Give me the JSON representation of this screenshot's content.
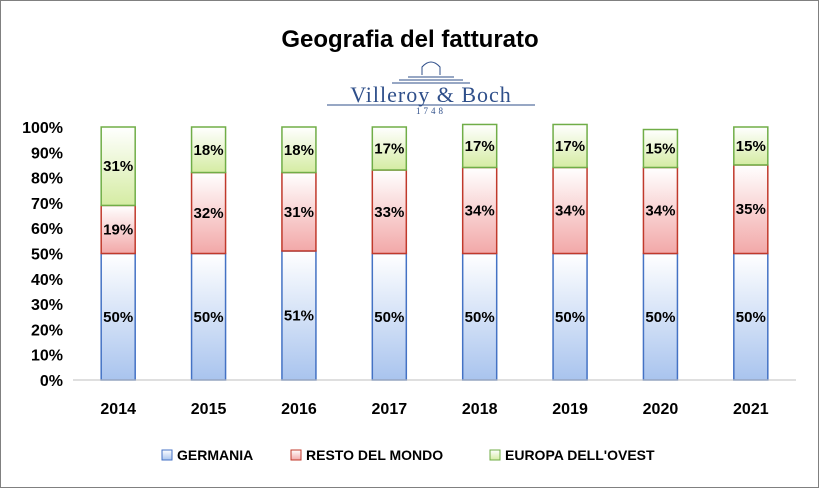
{
  "chart_data": {
    "type": "bar",
    "stacked": "percent",
    "title": "Geografia  del fatturato",
    "logo": {
      "brand": "Villeroy & Boch",
      "year": "1748"
    },
    "categories": [
      "2014",
      "2015",
      "2016",
      "2017",
      "2018",
      "2019",
      "2020",
      "2021"
    ],
    "yticks": [
      "0%",
      "10%",
      "20%",
      "30%",
      "40%",
      "50%",
      "60%",
      "70%",
      "80%",
      "90%",
      "100%"
    ],
    "ylim": [
      0,
      100
    ],
    "grid": false,
    "legend_position": "bottom",
    "series": [
      {
        "name": "GERMANIA",
        "values": [
          50,
          50,
          51,
          50,
          50,
          50,
          50,
          50
        ],
        "labels": [
          "50%",
          "50%",
          "51%",
          "50%",
          "50%",
          "50%",
          "50%",
          "50%"
        ],
        "fill_top": "#ffffff",
        "fill_bottom": "#a9c4ee",
        "stroke": "#4472c4"
      },
      {
        "name": "RESTO DEL MONDO",
        "values": [
          19,
          32,
          31,
          33,
          34,
          34,
          34,
          35
        ],
        "labels": [
          "19%",
          "32%",
          "31%",
          "33%",
          "34%",
          "34%",
          "34%",
          "35%"
        ],
        "fill_top": "#ffffff",
        "fill_bottom": "#f2a8a8",
        "stroke": "#c0392b"
      },
      {
        "name": "EUROPA DELL'OVEST",
        "values": [
          31,
          18,
          18,
          17,
          17,
          17,
          15,
          15
        ],
        "labels": [
          "31%",
          "18%",
          "18%",
          "17%",
          "17%",
          "17%",
          "15%",
          "15%"
        ],
        "fill_top": "#ffffff",
        "fill_bottom": "#d5eca3",
        "stroke": "#70ad47"
      }
    ]
  }
}
